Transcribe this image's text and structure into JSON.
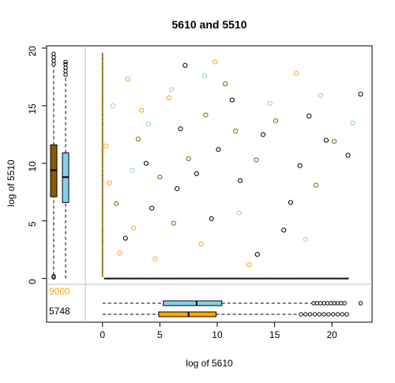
{
  "chart_data": {
    "type": "scatter",
    "title": "5610  and 5510",
    "xlabel": "log of 5610",
    "ylabel": "log of 5510",
    "xlim": [
      -1.5,
      23.5
    ],
    "ylim": [
      -0.5,
      20.2
    ],
    "x_ticks": [
      0,
      5,
      10,
      15,
      20
    ],
    "y_ticks": [
      0,
      5,
      10,
      15,
      20
    ],
    "grid": false,
    "legend": "none",
    "colors": {
      "brown": "#8B5A00",
      "skyblue": "#87CEEB",
      "orange": "#FFA500",
      "black": "#000000",
      "axis": "#000000",
      "sep": "#BEBEBE"
    },
    "margin_counts": {
      "x_zero_count": "9000",
      "y_zero_count": "5748",
      "x_zero_count_color": "#FFA500",
      "y_zero_count_color": "#000000"
    },
    "series_colors_note_free": true,
    "series": [
      {
        "color": "#000000",
        "points": [
          [
            8.2,
            9.1
          ],
          [
            6.5,
            7.8
          ],
          [
            10.1,
            11.2
          ],
          [
            12.0,
            8.5
          ],
          [
            4.3,
            6.1
          ],
          [
            9.5,
            5.2
          ],
          [
            14.0,
            12.5
          ],
          [
            17.2,
            9.8
          ],
          [
            19.5,
            12.0
          ],
          [
            21.4,
            10.7
          ],
          [
            2.0,
            3.5
          ],
          [
            6.8,
            13.0
          ],
          [
            11.3,
            15.5
          ],
          [
            15.8,
            4.2
          ],
          [
            13.5,
            2.1
          ],
          [
            18.0,
            14.1
          ],
          [
            22.5,
            16.0
          ],
          [
            7.2,
            18.5
          ],
          [
            3.8,
            10.0
          ],
          [
            16.4,
            6.6
          ]
        ]
      },
      {
        "color": "#8B5A00",
        "points": [
          [
            7.5,
            10.4
          ],
          [
            5.0,
            8.8
          ],
          [
            11.6,
            12.8
          ],
          [
            9.0,
            14.2
          ],
          [
            3.1,
            12.1
          ],
          [
            13.4,
            10.3
          ],
          [
            15.1,
            13.7
          ],
          [
            6.2,
            4.8
          ],
          [
            18.6,
            8.1
          ],
          [
            1.2,
            6.5
          ],
          [
            10.7,
            16.9
          ],
          [
            20.2,
            11.9
          ]
        ]
      },
      {
        "color": "#FFA500",
        "points": [
          [
            1.5,
            2.2
          ],
          [
            2.7,
            4.4
          ],
          [
            0.6,
            8.3
          ],
          [
            4.6,
            1.7
          ],
          [
            3.4,
            14.6
          ],
          [
            5.8,
            15.7
          ],
          [
            8.6,
            3.0
          ],
          [
            2.2,
            17.3
          ],
          [
            12.8,
            1.2
          ],
          [
            9.8,
            18.8
          ],
          [
            0.3,
            11.5
          ],
          [
            16.9,
            17.8
          ]
        ]
      },
      {
        "color": "#87CEEB",
        "points": [
          [
            4.0,
            13.4
          ],
          [
            6.0,
            16.4
          ],
          [
            8.9,
            17.6
          ],
          [
            2.6,
            9.4
          ],
          [
            14.6,
            15.2
          ],
          [
            19.0,
            15.9
          ],
          [
            11.9,
            5.7
          ],
          [
            21.8,
            13.5
          ],
          [
            0.9,
            15.0
          ],
          [
            17.7,
            3.4
          ]
        ]
      }
    ],
    "boxplots": {
      "x_margin": [
        {
          "color": "#87CEEB",
          "whisker_low": 0.0,
          "q1": 5.3,
          "median": 8.2,
          "q3": 10.4,
          "whisker_high": 18.2,
          "outliers": [
            18.4,
            18.7,
            19.0,
            19.3,
            19.6,
            19.9,
            20.2,
            20.5,
            20.8,
            21.1,
            22.5
          ]
        },
        {
          "color": "#FFA500",
          "whisker_low": 0.0,
          "q1": 4.9,
          "median": 7.5,
          "q3": 9.9,
          "whisker_high": 17.1,
          "outliers": [
            17.3,
            17.7,
            18.1,
            18.5,
            18.9,
            19.3,
            19.7,
            20.1,
            20.5,
            20.9,
            21.3
          ]
        }
      ],
      "y_margin": [
        {
          "color": "#8B5A00",
          "whisker_low": 0.3,
          "q1": 7.1,
          "median": 9.4,
          "q3": 11.6,
          "whisker_high": 18.4,
          "outliers": [
            0.1,
            0.2,
            18.6,
            18.9,
            19.2,
            19.5
          ]
        },
        {
          "color": "#87CEEB",
          "whisker_low": 0.0,
          "q1": 6.6,
          "median": 8.8,
          "q3": 10.9,
          "whisker_high": 17.5,
          "outliers": [
            17.7,
            18.0,
            18.3,
            18.6,
            18.8
          ]
        }
      ]
    }
  }
}
